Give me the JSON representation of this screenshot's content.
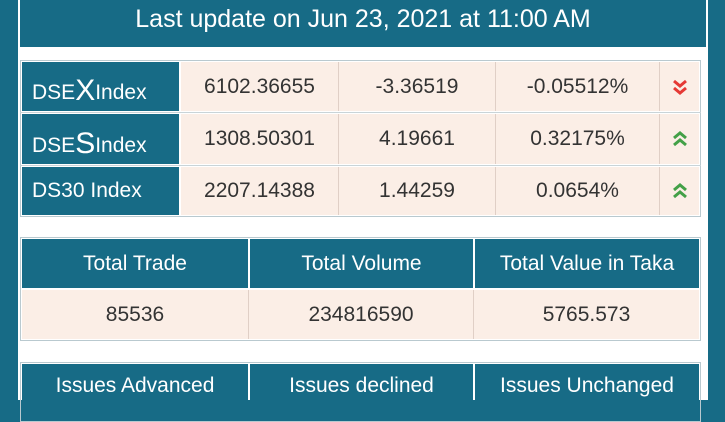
{
  "header": {
    "title": "Last update on Jun 23, 2021 at 11:00 AM"
  },
  "indices": [
    {
      "prefix": "DSE",
      "letter": "X",
      "suffix": " Index",
      "value": "6102.36655",
      "change": "-3.36519",
      "percent": "-0.05512%",
      "trend": "down",
      "trend_icon": "double-chevron-down-icon",
      "trend_color": "#e53935"
    },
    {
      "prefix": "DSE",
      "letter": "S",
      "suffix": " Index",
      "value": "1308.50301",
      "change": "4.19661",
      "percent": "0.32175%",
      "trend": "up",
      "trend_icon": "double-chevron-up-icon",
      "trend_color": "#43a047"
    },
    {
      "prefix": "DS30 Index",
      "letter": "",
      "suffix": "",
      "value": "2207.14388",
      "change": "1.44259",
      "percent": "0.0654%",
      "trend": "up",
      "trend_icon": "double-chevron-up-icon",
      "trend_color": "#43a047"
    }
  ],
  "totals": {
    "headers": [
      "Total Trade",
      "Total Volume",
      "Total Value in Taka"
    ],
    "values": [
      "85536",
      "234816590",
      "5765.573"
    ]
  },
  "issues": {
    "headers": [
      "Issues Advanced",
      "Issues declined",
      "Issues Unchanged"
    ]
  },
  "colors": {
    "primary": "#176b86",
    "cell_bg": "#fbeee6",
    "down": "#e53935",
    "up": "#43a047"
  }
}
